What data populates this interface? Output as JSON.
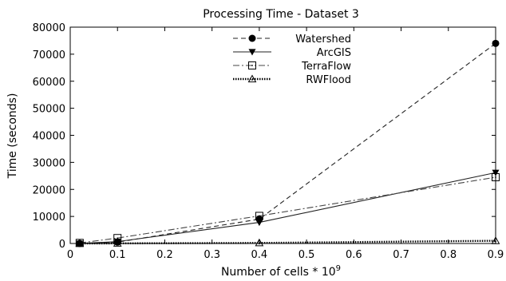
{
  "chart_data": {
    "type": "line",
    "title": "Processing Time - Dataset 3",
    "xlabel": "Number of cells * 10",
    "xlabel_exponent": "9",
    "ylabel": "Time (seconds)",
    "xlim": [
      0,
      0.9
    ],
    "ylim": [
      0,
      80000
    ],
    "x_ticks": [
      "0",
      "0.1",
      "0.2",
      "0.3",
      "0.4",
      "0.5",
      "0.6",
      "0.7",
      "0.8",
      "0.9"
    ],
    "y_ticks": [
      "0",
      "10000",
      "20000",
      "30000",
      "40000",
      "50000",
      "60000",
      "70000",
      "80000"
    ],
    "x_tick_values": [
      0,
      0.1,
      0.2,
      0.3,
      0.4,
      0.5,
      0.6,
      0.7,
      0.8,
      0.9
    ],
    "y_tick_values": [
      0,
      10000,
      20000,
      30000,
      40000,
      50000,
      60000,
      70000,
      80000
    ],
    "grid": false,
    "legend_position": "top-center",
    "series": [
      {
        "name": "Watershed",
        "marker": "circle-filled",
        "line": "dashed",
        "x": [
          0.02,
          0.1,
          0.4,
          0.9
        ],
        "y": [
          0,
          500,
          9000,
          74000
        ]
      },
      {
        "name": "ArcGIS",
        "marker": "triangle-down-filled",
        "line": "solid",
        "x": [
          0.02,
          0.1,
          0.4,
          0.9
        ],
        "y": [
          0,
          700,
          7800,
          26200
        ]
      },
      {
        "name": "TerraFlow",
        "marker": "square-open",
        "line": "dash-dot",
        "x": [
          0.02,
          0.1,
          0.4,
          0.9
        ],
        "y": [
          200,
          2000,
          10200,
          24500
        ]
      },
      {
        "name": "RWFlood",
        "marker": "triangle-up-open",
        "line": "dotted",
        "x": [
          0.02,
          0.1,
          0.4,
          0.9
        ],
        "y": [
          0,
          50,
          200,
          1000
        ]
      }
    ]
  }
}
